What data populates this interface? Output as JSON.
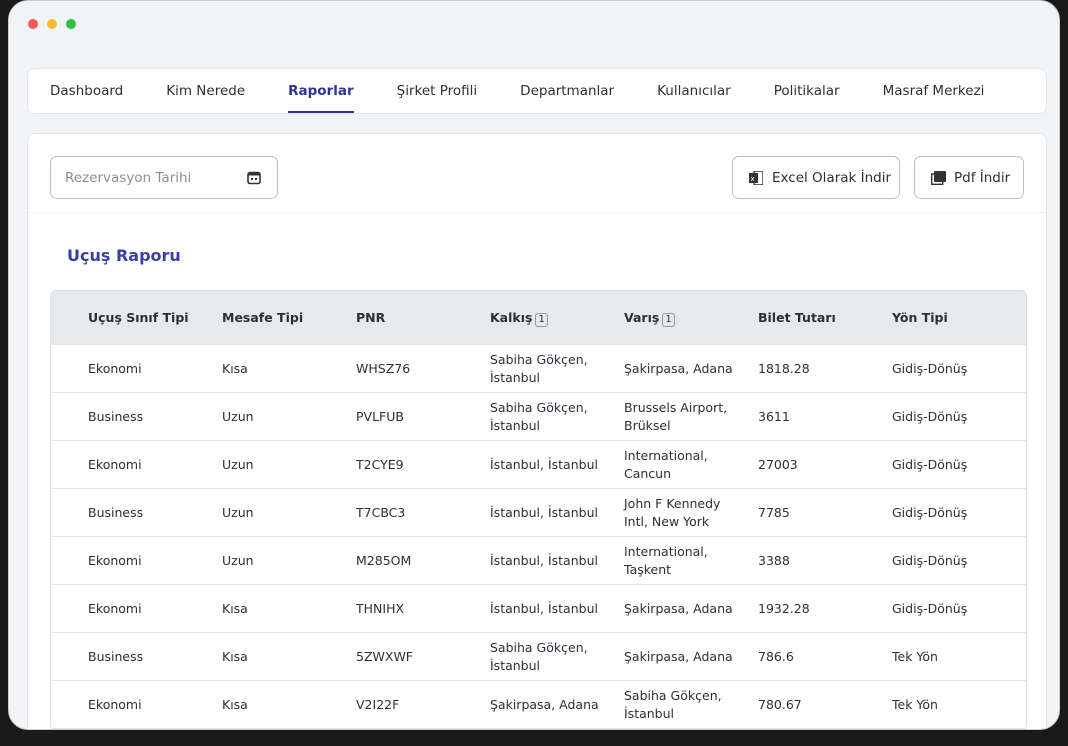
{
  "nav": {
    "tabs": [
      "Dashboard",
      "Kim Nerede",
      "Raporlar",
      "Şirket Profili",
      "Departmanlar",
      "Kullanıcılar",
      "Politikalar",
      "Masraf Merkezi"
    ]
  },
  "filter": {
    "placeholder": "Rezervasyon Tarihi"
  },
  "buttons": {
    "excel": "Excel Olarak İndir",
    "pdf": "Pdf İndir"
  },
  "report": {
    "title": "Uçuş Raporu",
    "table": {
      "columns": [
        "Uçuş Sınıf Tipi",
        "Mesafe Tipi",
        "PNR",
        {
          "label": "Kalkış",
          "badge": "1"
        },
        {
          "label": "Varış",
          "badge": "1"
        },
        "Bilet Tutarı",
        "Yön Tipi"
      ],
      "rows": [
        [
          "Ekonomi",
          "Kısa",
          "WHSZ76",
          "Sabiha Gökçen, İstanbul",
          "Şakirpasa, Adana",
          1818.28,
          "Gidiş-Dönüş"
        ],
        [
          "Business",
          "Uzun",
          "PVLFUB",
          "Sabiha Gökçen, İstanbul",
          "Brussels Airport, Brüksel",
          3611,
          "Gidiş-Dönüş"
        ],
        [
          "Ekonomi",
          "Uzun",
          "T2CYE9",
          "İstanbul, İstanbul",
          "International, Cancun",
          27003,
          "Gidiş-Dönüş"
        ],
        [
          "Business",
          "Uzun",
          "T7CBC3",
          "İstanbul, İstanbul",
          "John F Kennedy Intl, New York",
          7785,
          "Gidiş-Dönüş"
        ],
        [
          "Ekonomi",
          "Uzun",
          "M285OM",
          "İstanbul, İstanbul",
          "International, Taşkent",
          3388,
          "Gidiş-Dönüş"
        ],
        [
          "Ekonomi",
          "Kısa",
          "THNIHX",
          "İstanbul, İstanbul",
          "Şakirpasa, Adana",
          1932.28,
          "Gidiş-Dönüş"
        ],
        [
          "Business",
          "Kısa",
          "5ZWXWF",
          "Sabiha Gökçen, İstanbul",
          "Şakirpasa, Adana",
          786.6,
          "Tek Yön"
        ],
        [
          "Ekonomi",
          "Kısa",
          "V2I22F",
          "Şakirpasa, Adana",
          "Sabiha Gökçen, İstanbul",
          780.67,
          "Tek Yön"
        ]
      ]
    }
  }
}
